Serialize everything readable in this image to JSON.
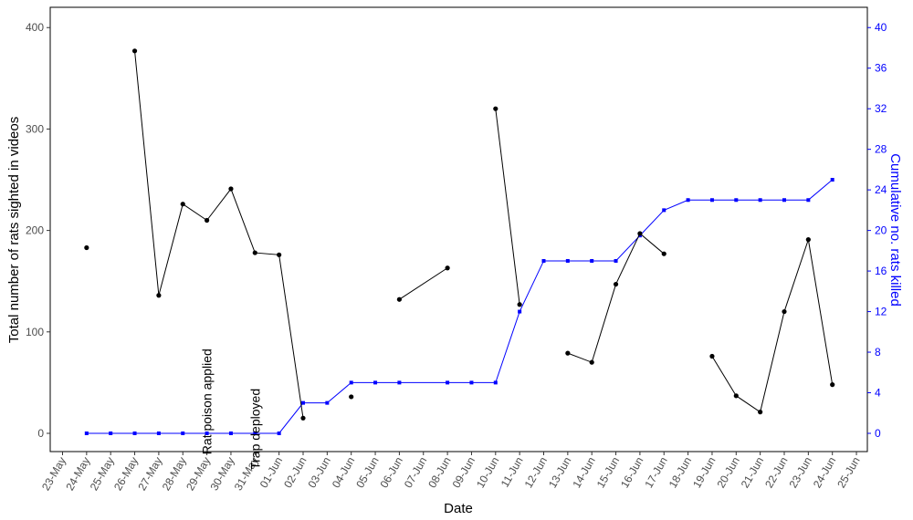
{
  "chart_data": {
    "type": "line",
    "xlabel": "Date",
    "ylabel": "Total number of rats sighted in videos",
    "y2label": "Cumulative no. rats killed",
    "x_ticks": [
      "23-May",
      "24-May",
      "25-May",
      "26-May",
      "27-May",
      "28-May",
      "29-May",
      "30-May",
      "31-May",
      "01-Jun",
      "02-Jun",
      "03-Jun",
      "04-Jun",
      "05-Jun",
      "06-Jun",
      "07-Jun",
      "08-Jun",
      "09-Jun",
      "10-Jun",
      "11-Jun",
      "12-Jun",
      "13-Jun",
      "14-Jun",
      "15-Jun",
      "16-Jun",
      "17-Jun",
      "18-Jun",
      "19-Jun",
      "20-Jun",
      "21-Jun",
      "22-Jun",
      "23-Jun",
      "24-Jun",
      "25-Jun"
    ],
    "ylim": [
      -18,
      420
    ],
    "y_ticks": [
      0,
      100,
      200,
      300,
      400
    ],
    "y2lim": [
      -1.8,
      42
    ],
    "y2_ticks": [
      0,
      4,
      8,
      12,
      16,
      20,
      24,
      28,
      32,
      36,
      40
    ],
    "grid": false,
    "colors": {
      "sighted": "#000000",
      "killed": "#0000ff"
    },
    "series": [
      {
        "axis": "left",
        "points": [
          {
            "x": "24-May",
            "y": 183
          },
          {
            "x": "26-May",
            "y": 377
          },
          {
            "x": "27-May",
            "y": 136
          },
          {
            "x": "28-May",
            "y": 226
          },
          {
            "x": "29-May",
            "y": 210
          },
          {
            "x": "30-May",
            "y": 241
          },
          {
            "x": "31-May",
            "y": 178
          },
          {
            "x": "01-Jun",
            "y": 176
          },
          {
            "x": "02-Jun",
            "y": 15
          },
          {
            "x": "04-Jun",
            "y": 36
          },
          {
            "x": "06-Jun",
            "y": 132
          },
          {
            "x": "08-Jun",
            "y": 163
          },
          {
            "x": "10-Jun",
            "y": 320
          },
          {
            "x": "11-Jun",
            "y": 127
          },
          {
            "x": "13-Jun",
            "y": 79
          },
          {
            "x": "14-Jun",
            "y": 70
          },
          {
            "x": "15-Jun",
            "y": 147
          },
          {
            "x": "16-Jun",
            "y": 197
          },
          {
            "x": "17-Jun",
            "y": 177
          },
          {
            "x": "19-Jun",
            "y": 76
          },
          {
            "x": "20-Jun",
            "y": 37
          },
          {
            "x": "21-Jun",
            "y": 21
          },
          {
            "x": "22-Jun",
            "y": 120
          },
          {
            "x": "23-Jun",
            "y": 191
          },
          {
            "x": "24-Jun",
            "y": 48
          }
        ],
        "segments": [
          [
            "26-May",
            "27-May",
            "28-May",
            "29-May",
            "30-May",
            "31-May",
            "01-Jun",
            "02-Jun"
          ],
          [
            "06-Jun",
            "08-Jun"
          ],
          [
            "10-Jun",
            "11-Jun"
          ],
          [
            "13-Jun",
            "14-Jun",
            "15-Jun",
            "16-Jun",
            "17-Jun"
          ],
          [
            "19-Jun",
            "20-Jun",
            "21-Jun",
            "22-Jun",
            "23-Jun",
            "24-Jun"
          ]
        ]
      },
      {
        "axis": "right",
        "points": [
          {
            "x": "24-May",
            "y": 0
          },
          {
            "x": "25-May",
            "y": 0
          },
          {
            "x": "26-May",
            "y": 0
          },
          {
            "x": "27-May",
            "y": 0
          },
          {
            "x": "28-May",
            "y": 0
          },
          {
            "x": "29-May",
            "y": 0
          },
          {
            "x": "30-May",
            "y": 0
          },
          {
            "x": "31-May",
            "y": 0
          },
          {
            "x": "01-Jun",
            "y": 0
          },
          {
            "x": "02-Jun",
            "y": 3
          },
          {
            "x": "03-Jun",
            "y": 3
          },
          {
            "x": "04-Jun",
            "y": 5
          },
          {
            "x": "05-Jun",
            "y": 5
          },
          {
            "x": "06-Jun",
            "y": 5
          },
          {
            "x": "08-Jun",
            "y": 5
          },
          {
            "x": "09-Jun",
            "y": 5
          },
          {
            "x": "10-Jun",
            "y": 5
          },
          {
            "x": "11-Jun",
            "y": 12
          },
          {
            "x": "12-Jun",
            "y": 17
          },
          {
            "x": "13-Jun",
            "y": 17
          },
          {
            "x": "14-Jun",
            "y": 17
          },
          {
            "x": "15-Jun",
            "y": 17
          },
          {
            "x": "16-Jun",
            "y": 19.5
          },
          {
            "x": "17-Jun",
            "y": 22
          },
          {
            "x": "18-Jun",
            "y": 23
          },
          {
            "x": "19-Jun",
            "y": 23
          },
          {
            "x": "20-Jun",
            "y": 23
          },
          {
            "x": "21-Jun",
            "y": 23
          },
          {
            "x": "22-Jun",
            "y": 23
          },
          {
            "x": "23-Jun",
            "y": 23
          },
          {
            "x": "24-Jun",
            "y": 25
          }
        ]
      }
    ],
    "annotations": [
      {
        "text": "Rat poison applied",
        "x": "29-May",
        "y": 150
      },
      {
        "text": "Trap deployed",
        "x": "31-May",
        "y": 135
      }
    ]
  }
}
